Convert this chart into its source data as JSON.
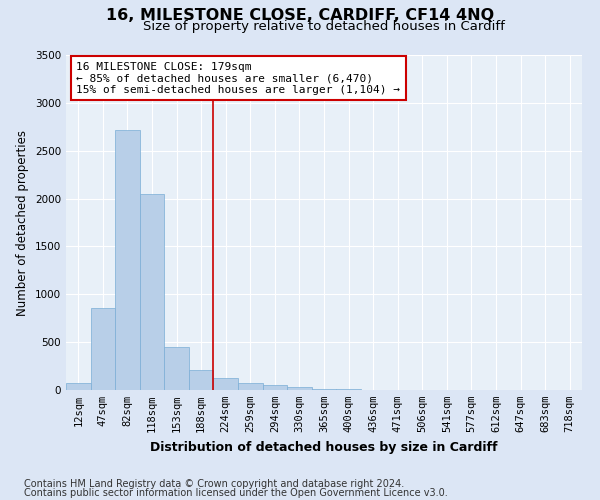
{
  "title": "16, MILESTONE CLOSE, CARDIFF, CF14 4NQ",
  "subtitle": "Size of property relative to detached houses in Cardiff",
  "xlabel": "Distribution of detached houses by size in Cardiff",
  "ylabel": "Number of detached properties",
  "categories": [
    "12sqm",
    "47sqm",
    "82sqm",
    "118sqm",
    "153sqm",
    "188sqm",
    "224sqm",
    "259sqm",
    "294sqm",
    "330sqm",
    "365sqm",
    "400sqm",
    "436sqm",
    "471sqm",
    "506sqm",
    "541sqm",
    "577sqm",
    "612sqm",
    "647sqm",
    "683sqm",
    "718sqm"
  ],
  "values": [
    70,
    860,
    2720,
    2050,
    450,
    210,
    130,
    70,
    55,
    30,
    10,
    10,
    5,
    2,
    1,
    0,
    0,
    0,
    0,
    0,
    0
  ],
  "bar_color": "#b8cfe8",
  "bar_edge_color": "#7aaed6",
  "vline_x": 5.5,
  "vline_color": "#cc0000",
  "annotation_line1": "16 MILESTONE CLOSE: 179sqm",
  "annotation_line2": "← 85% of detached houses are smaller (6,470)",
  "annotation_line3": "15% of semi-detached houses are larger (1,104) →",
  "annotation_box_color": "#cc0000",
  "ylim": [
    0,
    3500
  ],
  "yticks": [
    0,
    500,
    1000,
    1500,
    2000,
    2500,
    3000,
    3500
  ],
  "footer_line1": "Contains HM Land Registry data © Crown copyright and database right 2024.",
  "footer_line2": "Contains public sector information licensed under the Open Government Licence v3.0.",
  "background_color": "#dce6f5",
  "plot_bg_color": "#e8f0f8",
  "title_fontsize": 11.5,
  "subtitle_fontsize": 9.5,
  "tick_fontsize": 7.5,
  "ylabel_fontsize": 8.5,
  "xlabel_fontsize": 9,
  "footer_fontsize": 7,
  "annotation_fontsize": 8
}
